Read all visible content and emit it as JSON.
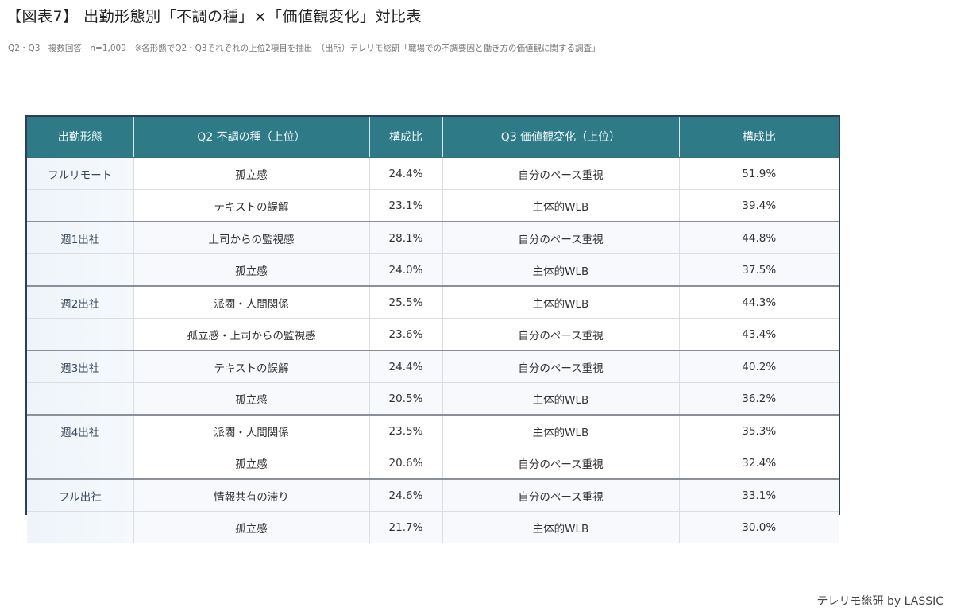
{
  "title": "【図表7】 出勤形態別「不調の種」×「価値観変化」対比表",
  "subtitle": "Q2・Q3　複数回答　n=1,009　※各形態でQ2・Q3それぞれの上位2項目を抽出　（出所）テレリモ総研「職場での不調要因と働き方の価値観に関する調査」",
  "table": {
    "headers": [
      "出勤形態",
      "Q2 不調の種（上位）",
      "構成比",
      "Q3 価値観変化（上位）",
      "構成比"
    ],
    "rows": [
      {
        "type": "フルリモート",
        "q2": "孤立感",
        "q2_pct": "24.4%",
        "q3": "自分のペース重視",
        "q3_pct": "51.9%"
      },
      {
        "type": "",
        "q2": "テキストの誤解",
        "q2_pct": "23.1%",
        "q3": "主体的WLB",
        "q3_pct": "39.4%"
      },
      {
        "type": "週1出社",
        "q2": "上司からの監視感",
        "q2_pct": "28.1%",
        "q3": "自分のペース重視",
        "q3_pct": "44.8%"
      },
      {
        "type": "",
        "q2": "孤立感",
        "q2_pct": "24.0%",
        "q3": "主体的WLB",
        "q3_pct": "37.5%"
      },
      {
        "type": "週2出社",
        "q2": "派閥・人間関係",
        "q2_pct": "25.5%",
        "q3": "主体的WLB",
        "q3_pct": "44.3%"
      },
      {
        "type": "",
        "q2": "孤立感・上司からの監視感",
        "q2_pct": "23.6%",
        "q3": "自分のペース重視",
        "q3_pct": "43.4%"
      },
      {
        "type": "週3出社",
        "q2": "テキストの誤解",
        "q2_pct": "24.4%",
        "q3": "自分のペース重視",
        "q3_pct": "40.2%"
      },
      {
        "type": "",
        "q2": "孤立感",
        "q2_pct": "20.5%",
        "q3": "主体的WLB",
        "q3_pct": "36.2%"
      },
      {
        "type": "週4出社",
        "q2": "派閥・人間関係",
        "q2_pct": "23.5%",
        "q3": "主体的WLB",
        "q3_pct": "35.3%"
      },
      {
        "type": "",
        "q2": "孤立感",
        "q2_pct": "20.6%",
        "q3": "自分のペース重視",
        "q3_pct": "32.4%"
      },
      {
        "type": "フル出社",
        "q2": "情報共有の滞り",
        "q2_pct": "24.6%",
        "q3": "自分のペース重視",
        "q3_pct": "33.1%"
      },
      {
        "type": "",
        "q2": "孤立感",
        "q2_pct": "21.7%",
        "q3": "主体的WLB",
        "q3_pct": "30.0%"
      }
    ]
  },
  "footer": "テレリモ総研 by LASSIC",
  "colors": {
    "header_bg": "#2e7a87",
    "border": "#2c3e5a"
  }
}
